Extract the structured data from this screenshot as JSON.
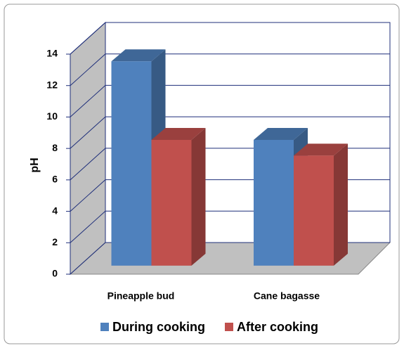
{
  "chart_data": {
    "type": "bar3d",
    "ylabel": "pH",
    "categories": [
      "Pineapple bud",
      "Cane bagasse"
    ],
    "series": [
      {
        "name": "During cooking",
        "color": "#4f81bd",
        "values": [
          13,
          8
        ]
      },
      {
        "name": "After cooking",
        "color": "#c0504d",
        "values": [
          8,
          7
        ]
      }
    ],
    "ylim": [
      0,
      14
    ],
    "yticks": [
      0,
      2,
      4,
      6,
      8,
      10,
      12,
      14
    ],
    "grid": true,
    "legend": "bottom"
  }
}
